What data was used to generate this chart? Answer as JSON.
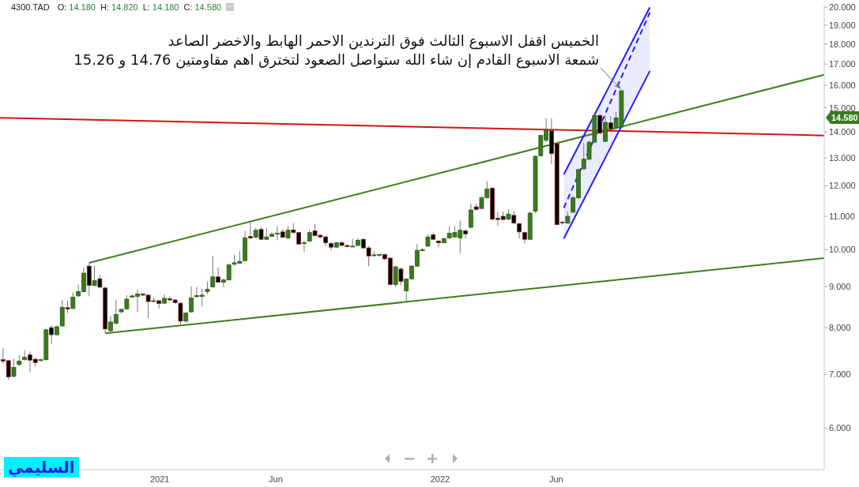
{
  "chart_data": {
    "type": "candlestick",
    "title": "4300.TAD",
    "subtitle": "O: 14.180 H: 14.820 L: 14.180 C: 14.580",
    "x": [
      "2020-06-11",
      "2020-06-18",
      "2020-06-25",
      "2020-07-02",
      "2020-07-09",
      "2020-07-16",
      "2020-07-23",
      "2020-07-30",
      "2020-08-06",
      "2020-08-13",
      "2020-08-20",
      "2020-08-27",
      "2020-09-03",
      "2020-09-10",
      "2020-09-17",
      "2020-09-24",
      "2020-10-01",
      "2020-10-08",
      "2020-10-15",
      "2020-10-22",
      "2020-10-29",
      "2020-11-05",
      "2020-11-12",
      "2020-11-19",
      "2020-11-26",
      "2020-12-03",
      "2020-12-10",
      "2020-12-17",
      "2020-12-24",
      "2020-12-31",
      "2021-01-07",
      "2021-01-14",
      "2021-01-21",
      "2021-01-28",
      "2021-02-04",
      "2021-02-11",
      "2021-02-18",
      "2021-02-25",
      "2021-03-04",
      "2021-03-11",
      "2021-03-18",
      "2021-03-25",
      "2021-04-01",
      "2021-04-08",
      "2021-04-15",
      "2021-04-22",
      "2021-04-29",
      "2021-05-06",
      "2021-05-13",
      "2021-05-20",
      "2021-05-27",
      "2021-06-03",
      "2021-06-10",
      "2021-06-17",
      "2021-06-24",
      "2021-07-01",
      "2021-07-08",
      "2021-07-15",
      "2021-07-22",
      "2021-07-29",
      "2021-08-05",
      "2021-08-12",
      "2021-08-19",
      "2021-08-26",
      "2021-09-02",
      "2021-09-09",
      "2021-09-16",
      "2021-09-23",
      "2021-09-30",
      "2021-10-07",
      "2021-10-14",
      "2021-10-21",
      "2021-10-28",
      "2021-11-04",
      "2021-11-11",
      "2021-11-18",
      "2021-11-25",
      "2021-12-02",
      "2021-12-09",
      "2021-12-16",
      "2021-12-23",
      "2021-12-30",
      "2022-01-06",
      "2022-01-13",
      "2022-01-20",
      "2022-01-27",
      "2022-02-03",
      "2022-02-10",
      "2022-02-17",
      "2022-02-24",
      "2022-03-03",
      "2022-03-10",
      "2022-03-17",
      "2022-03-24",
      "2022-03-31",
      "2022-04-07",
      "2022-04-14",
      "2022-04-21",
      "2022-04-28",
      "2022-05-05",
      "2022-05-12",
      "2022-05-19",
      "2022-05-26",
      "2022-06-02",
      "2022-06-09",
      "2022-06-16",
      "2022-06-23",
      "2022-06-30",
      "2022-07-07",
      "2022-07-14",
      "2022-07-21",
      "2022-07-28",
      "2022-08-04",
      "2022-08-11",
      "2022-08-18",
      "2022-08-25"
    ],
    "ohlc": [
      [
        7.3,
        7.55,
        7.22,
        7.27
      ],
      [
        7.28,
        7.3,
        6.89,
        6.95
      ],
      [
        6.96,
        7.32,
        6.93,
        7.14
      ],
      [
        7.2,
        7.4,
        7.17,
        7.27
      ],
      [
        7.3,
        7.5,
        7.28,
        7.35
      ],
      [
        7.4,
        7.47,
        7.05,
        7.29
      ],
      [
        7.31,
        7.33,
        7.15,
        7.24
      ],
      [
        7.28,
        7.31,
        7.27,
        7.3
      ],
      [
        7.3,
        7.98,
        7.28,
        7.95
      ],
      [
        8.0,
        8.05,
        7.64,
        7.84
      ],
      [
        7.84,
        8.05,
        7.82,
        8.02
      ],
      [
        8.04,
        8.66,
        8.02,
        8.48
      ],
      [
        8.47,
        8.64,
        8.34,
        8.44
      ],
      [
        8.45,
        8.85,
        8.44,
        8.73
      ],
      [
        8.76,
        9.05,
        8.74,
        8.87
      ],
      [
        8.87,
        9.5,
        8.85,
        9.35
      ],
      [
        9.54,
        9.62,
        8.75,
        9.03
      ],
      [
        9.03,
        9.55,
        9.0,
        9.15
      ],
      [
        9.2,
        9.31,
        8.97,
        8.98
      ],
      [
        8.96,
        9.0,
        7.87,
        7.97
      ],
      [
        7.93,
        8.27,
        7.9,
        8.13
      ],
      [
        8.1,
        8.66,
        8.08,
        8.31
      ],
      [
        8.37,
        8.45,
        8.33,
        8.43
      ],
      [
        8.44,
        8.78,
        8.42,
        8.68
      ],
      [
        8.73,
        8.8,
        8.72,
        8.76
      ],
      [
        8.75,
        8.92,
        8.37,
        8.81
      ],
      [
        8.81,
        8.83,
        8.76,
        8.78
      ],
      [
        8.78,
        8.8,
        8.22,
        8.62
      ],
      [
        8.62,
        8.72,
        8.6,
        8.64
      ],
      [
        8.64,
        8.66,
        8.45,
        8.57
      ],
      [
        8.58,
        8.8,
        8.56,
        8.7
      ],
      [
        8.69,
        8.75,
        8.64,
        8.66
      ],
      [
        8.66,
        8.68,
        8.56,
        8.59
      ],
      [
        8.58,
        8.6,
        8.07,
        8.15
      ],
      [
        8.15,
        8.36,
        8.12,
        8.34
      ],
      [
        8.37,
        9.0,
        8.35,
        8.71
      ],
      [
        8.74,
        8.99,
        8.72,
        8.77
      ],
      [
        8.75,
        8.95,
        8.5,
        8.78
      ],
      [
        8.87,
        9.13,
        8.8,
        8.93
      ],
      [
        8.99,
        9.82,
        8.97,
        9.25
      ],
      [
        9.25,
        9.5,
        9.1,
        9.11
      ],
      [
        9.11,
        9.2,
        8.98,
        9.17
      ],
      [
        9.17,
        9.6,
        9.15,
        9.57
      ],
      [
        9.59,
        9.85,
        9.55,
        9.63
      ],
      [
        9.62,
        9.95,
        9.6,
        9.67
      ],
      [
        9.69,
        10.55,
        9.67,
        10.34
      ],
      [
        10.38,
        10.8,
        10.3,
        10.34
      ],
      [
        10.36,
        10.64,
        10.33,
        10.57
      ],
      [
        10.6,
        10.67,
        10.28,
        10.3
      ],
      [
        10.3,
        10.64,
        10.28,
        10.37
      ],
      [
        10.39,
        10.5,
        10.36,
        10.45
      ],
      [
        10.46,
        10.69,
        10.27,
        10.48
      ],
      [
        10.52,
        10.6,
        10.34,
        10.36
      ],
      [
        10.34,
        10.7,
        10.3,
        10.57
      ],
      [
        10.58,
        10.78,
        10.47,
        10.5
      ],
      [
        10.5,
        10.52,
        10.14,
        10.16
      ],
      [
        10.18,
        10.25,
        9.93,
        10.2
      ],
      [
        10.25,
        10.6,
        10.22,
        10.5
      ],
      [
        10.55,
        10.76,
        10.38,
        10.41
      ],
      [
        10.42,
        10.45,
        10.33,
        10.37
      ],
      [
        10.37,
        10.4,
        10.1,
        10.2
      ],
      [
        10.18,
        10.22,
        9.98,
        10.07
      ],
      [
        10.07,
        10.22,
        10.05,
        10.2
      ],
      [
        10.2,
        10.25,
        10.1,
        10.12
      ],
      [
        10.12,
        10.14,
        10.06,
        10.09
      ],
      [
        10.09,
        10.32,
        10.07,
        10.1
      ],
      [
        10.12,
        10.34,
        10.1,
        10.27
      ],
      [
        10.3,
        10.32,
        10.02,
        10.05
      ],
      [
        10.05,
        10.1,
        9.54,
        9.82
      ],
      [
        9.83,
        9.95,
        9.8,
        9.85
      ],
      [
        9.84,
        9.88,
        9.8,
        9.86
      ],
      [
        9.86,
        9.88,
        9.7,
        9.74
      ],
      [
        9.76,
        9.79,
        9.03,
        9.05
      ],
      [
        9.05,
        9.55,
        8.99,
        9.52
      ],
      [
        9.46,
        9.5,
        9.03,
        9.13
      ],
      [
        8.89,
        9.22,
        8.62,
        9.19
      ],
      [
        9.2,
        9.56,
        9.18,
        9.54
      ],
      [
        9.54,
        10.16,
        9.52,
        9.98
      ],
      [
        9.97,
        10.05,
        9.95,
        10.0
      ],
      [
        10.1,
        10.45,
        10.08,
        10.37
      ],
      [
        10.43,
        10.5,
        10.28,
        10.3
      ],
      [
        10.25,
        10.27,
        10.07,
        10.2
      ],
      [
        10.2,
        10.35,
        10.18,
        10.32
      ],
      [
        10.34,
        10.69,
        10.32,
        10.48
      ],
      [
        10.37,
        10.7,
        10.34,
        10.5
      ],
      [
        10.34,
        10.86,
        9.9,
        10.57
      ],
      [
        10.55,
        10.6,
        10.32,
        10.46
      ],
      [
        10.66,
        11.4,
        10.62,
        11.2
      ],
      [
        11.3,
        11.4,
        11.18,
        11.22
      ],
      [
        11.25,
        11.65,
        11.22,
        11.6
      ],
      [
        11.6,
        12.16,
        11.57,
        11.89
      ],
      [
        11.92,
        11.95,
        10.87,
        10.91
      ],
      [
        10.94,
        11.14,
        10.7,
        10.9
      ],
      [
        11.0,
        11.15,
        10.88,
        10.9
      ],
      [
        10.91,
        11.22,
        10.88,
        11.07
      ],
      [
        11.03,
        11.17,
        10.75,
        10.79
      ],
      [
        10.77,
        10.8,
        10.32,
        10.52
      ],
      [
        10.5,
        10.53,
        10.18,
        10.3
      ],
      [
        10.3,
        11.15,
        10.28,
        11.1
      ],
      [
        11.16,
        13.1,
        11.1,
        13.06
      ],
      [
        13.08,
        13.9,
        13.05,
        13.86
      ],
      [
        13.67,
        14.56,
        13.6,
        14.08
      ],
      [
        14.05,
        14.56,
        12.77,
        13.16
      ],
      [
        13.54,
        13.56,
        10.72,
        10.74
      ],
      [
        10.82,
        10.84,
        10.74,
        10.8
      ],
      [
        10.79,
        11.15,
        10.76,
        11.0
      ],
      [
        11.13,
        11.65,
        11.1,
        11.6
      ],
      [
        11.6,
        12.62,
        11.55,
        12.57
      ],
      [
        12.6,
        13.56,
        12.55,
        12.95
      ],
      [
        12.95,
        13.65,
        12.9,
        13.6
      ],
      [
        13.6,
        14.72,
        13.56,
        14.68
      ],
      [
        14.68,
        14.72,
        13.9,
        13.96
      ],
      [
        13.63,
        14.68,
        13.6,
        14.39
      ],
      [
        14.37,
        14.65,
        14.1,
        14.13
      ],
      [
        14.18,
        14.82,
        14.18,
        14.58
      ],
      [
        14.2,
        15.8,
        14.2,
        15.75
      ]
    ],
    "colors": [
      "#000000",
      "#000000",
      "#3a7a1f",
      "#3a7a1f",
      "#3a7a1f",
      "#000000",
      "#000000",
      "#3a7a1f",
      "#3a7a1f",
      "#000000",
      "#3a7a1f",
      "#3a7a1f",
      "#000000",
      "#3a7a1f",
      "#3a7a1f",
      "#3a7a1f",
      "#000000",
      "#3a7a1f",
      "#000000",
      "#000000",
      "#3a7a1f",
      "#3a7a1f",
      "#3a7a1f",
      "#3a7a1f",
      "#3a7a1f",
      "#3a7a1f",
      "#000000",
      "#000000",
      "#3a7a1f",
      "#000000",
      "#3a7a1f",
      "#000000",
      "#000000",
      "#000000",
      "#3a7a1f",
      "#3a7a1f",
      "#3a7a1f",
      "#3a7a1f",
      "#3a7a1f",
      "#3a7a1f",
      "#000000",
      "#3a7a1f",
      "#3a7a1f",
      "#3a7a1f",
      "#3a7a1f",
      "#3a7a1f",
      "#000000",
      "#3a7a1f",
      "#000000",
      "#3a7a1f",
      "#3a7a1f",
      "#3a7a1f",
      "#000000",
      "#3a7a1f",
      "#000000",
      "#000000",
      "#3a7a1f",
      "#3a7a1f",
      "#000000",
      "#000000",
      "#000000",
      "#000000",
      "#3a7a1f",
      "#000000",
      "#000000",
      "#3a7a1f",
      "#3a7a1f",
      "#000000",
      "#000000",
      "#3a7a1f",
      "#3a7a1f",
      "#000000",
      "#000000",
      "#3a7a1f",
      "#000000",
      "#3a7a1f",
      "#3a7a1f",
      "#3a7a1f",
      "#3a7a1f",
      "#3a7a1f",
      "#000000",
      "#000000",
      "#3a7a1f",
      "#3a7a1f",
      "#3a7a1f",
      "#3a7a1f",
      "#000000",
      "#3a7a1f",
      "#000000",
      "#3a7a1f",
      "#3a7a1f",
      "#000000",
      "#000000",
      "#000000",
      "#3a7a1f",
      "#000000",
      "#000000",
      "#000000",
      "#3a7a1f",
      "#3a7a1f",
      "#3a7a1f",
      "#3a7a1f",
      "#000000",
      "#000000",
      "#000000",
      "#3a7a1f",
      "#3a7a1f",
      "#3a7a1f",
      "#3a7a1f",
      "#3a7a1f",
      "#3a7a1f",
      "#000000",
      "#3a7a1f",
      "#000000",
      "#3a7a1f",
      "#3a7a1f"
    ],
    "series": [
      {
        "type": "line",
        "color": "#3f7f1c",
        "x": [
          "2020-10-01",
          "2023-05-16"
        ],
        "values": [
          9.63,
          16.49
        ]
      },
      {
        "type": "line",
        "color": "#3f7f1c",
        "x": [
          "2020-10-22",
          "2023-05-16"
        ],
        "values": [
          7.87,
          9.76
        ]
      },
      {
        "type": "line",
        "color": "#d41414",
        "x": [
          "2020-06-07",
          "2023-05-16"
        ],
        "values": [
          14.58,
          13.86
        ]
      },
      {
        "type": "line",
        "color": "#1f1fff",
        "x": [
          "2022-06-11",
          "2022-10-01"
        ],
        "values": [
          12.4,
          20.0
        ]
      },
      {
        "type": "line",
        "color": "#1f1fff",
        "x": [
          "2022-06-11",
          "2022-10-01"
        ],
        "values": [
          10.32,
          16.67
        ]
      },
      {
        "type": "line",
        "color": "#1f1fff",
        "line_style": "dashed",
        "x": [
          "2022-06-11",
          "2022-10-01"
        ],
        "values": [
          11.27,
          19.7
        ],
        "lower": [
          10.32,
          16.67
        ],
        "upper": [
          12.4,
          20.0
        ]
      }
    ],
    "xlim": [
      "2020-06-07",
      "2023-05-16"
    ],
    "xticks": [
      {
        "value": "2021-01-01",
        "label": "2021"
      },
      {
        "value": "2021-06-01",
        "label": "Jun"
      },
      {
        "value": "2022-01-01",
        "label": "2022"
      },
      {
        "value": "2022-06-01",
        "label": "Jun"
      }
    ],
    "ylim": [
      5.33,
      20.1
    ],
    "yticks": [
      {
        "value": 6,
        "label": "6.000"
      },
      {
        "value": 7,
        "label": "7.000"
      },
      {
        "value": 8,
        "label": "8.000"
      },
      {
        "value": 9,
        "label": "9.000"
      },
      {
        "value": 10,
        "label": "10.000"
      },
      {
        "value": 11,
        "label": "11.000"
      },
      {
        "value": 12,
        "label": "12.000"
      },
      {
        "value": 13,
        "label": "13.000"
      },
      {
        "value": 14,
        "label": "14.000"
      },
      {
        "value": 15,
        "label": "15.000"
      },
      {
        "value": 16,
        "label": "16.000"
      },
      {
        "value": 17,
        "label": "17.000"
      },
      {
        "value": 18,
        "label": "18.000"
      },
      {
        "value": 19,
        "label": "19.000"
      },
      {
        "value": 20,
        "label": "20.000"
      }
    ],
    "log": true,
    "annotations": [
      "الخميس اقفل الاسبوع الثالث فوق الترندين الاحمر الهابط والاخضر الصاعد",
      {
        "text": "شمعة الاسبوع القادم إن شاء الله ستواصل الصعود لتخترق اهم مقاومتين 14.76 و 15.26",
        "x": "2022-08-25",
        "y": 15.8
      },
      "14.580",
      "السليمي"
    ]
  }
}
